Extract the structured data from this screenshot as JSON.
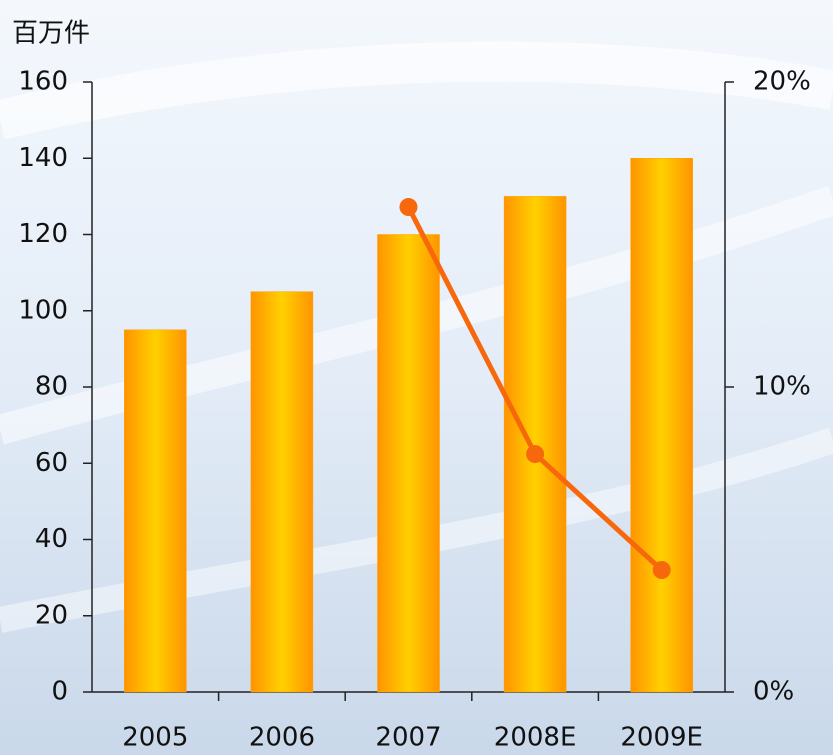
{
  "chart_data": {
    "type": "bar",
    "y_axis_label": "百万件",
    "categories": [
      "2005",
      "2006",
      "2007",
      "2008E",
      "2009E"
    ],
    "series": [
      {
        "type": "bar",
        "color": "#ffa200",
        "values": [
          95,
          105,
          120,
          130,
          140
        ]
      },
      {
        "type": "line",
        "axis": "y2",
        "color": "#f7680d",
        "values": [
          null,
          null,
          15.9,
          7.8,
          4.0
        ]
      }
    ],
    "ylim": [
      0,
      160
    ],
    "yticks": [
      0,
      20,
      40,
      60,
      80,
      100,
      120,
      140,
      160
    ],
    "y2lim": [
      0,
      20
    ],
    "y2ticks": [
      {
        "value": 0,
        "label": "0%"
      },
      {
        "value": 10,
        "label": "10%"
      },
      {
        "value": 20,
        "label": "20%"
      }
    ],
    "grid": false
  }
}
